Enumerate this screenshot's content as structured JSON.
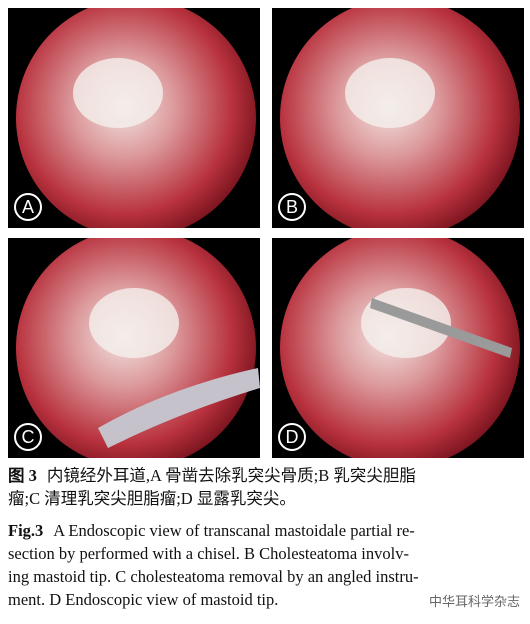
{
  "figure": {
    "panels": [
      {
        "label": "A"
      },
      {
        "label": "B"
      },
      {
        "label": "C"
      },
      {
        "label": "D"
      }
    ],
    "caption_cn": {
      "label": "图 3",
      "lines": [
        "内镜经外耳道,A 骨凿去除乳突尖骨质;B 乳突尖胆脂",
        "瘤;C 清理乳突尖胆脂瘤;D 显露乳突尖。"
      ]
    },
    "caption_en": {
      "label": "Fig.3",
      "lines": [
        "A Endoscopic view of transcanal mastoidale partial re-",
        "section by performed with a chisel. B Cholesteatoma involv-",
        "ing mastoid tip. C cholesteatoma removal by an angled instru-",
        "ment. D Endoscopic view of mastoid tip."
      ]
    },
    "watermark": "中华耳科学杂志"
  }
}
